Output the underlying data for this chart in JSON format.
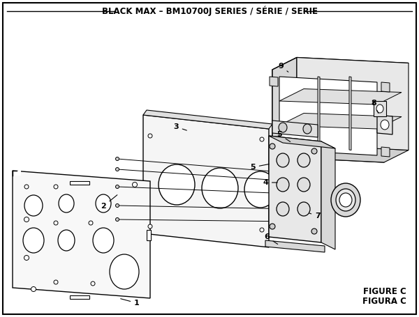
{
  "title": "BLACK MAX – BM10700J SERIES / SÉRIE / SERIE",
  "title_fontsize": 8.5,
  "figure_C_text": "FIGURE C",
  "figura_C_text": "FIGURA C",
  "bg_color": "#ffffff",
  "lc": "#000000",
  "fig_width": 6.0,
  "fig_height": 4.55,
  "dpi": 100
}
